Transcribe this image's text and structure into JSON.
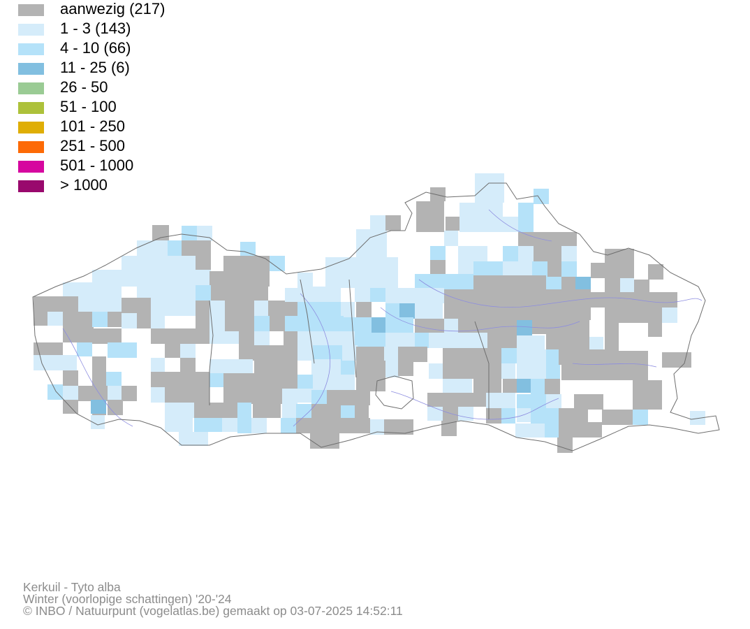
{
  "legend": {
    "items": [
      {
        "label": "aanwezig (217)",
        "color": "#b3b3b3",
        "class": "present"
      },
      {
        "label": "1 - 3 (143)",
        "color": "#d5ecfa",
        "class": "c1"
      },
      {
        "label": "4 - 10 (66)",
        "color": "#b5e2f9",
        "class": "c2"
      },
      {
        "label": "11 - 25 (6)",
        "color": "#82bfe0",
        "class": "c3"
      },
      {
        "label": "26 - 50",
        "color": "#9acb94",
        "class": "c4"
      },
      {
        "label": "51 - 100",
        "color": "#adc13a",
        "class": "c5"
      },
      {
        "label": "101 - 250",
        "color": "#dfae05",
        "class": "c6"
      },
      {
        "label": "251 - 500",
        "color": "#fd6a06",
        "class": "c7"
      },
      {
        "label": "501 - 1000",
        "color": "#d6079f",
        "class": "c8"
      },
      {
        "label": "> 1000",
        "color": "#99096d",
        "class": "c9"
      }
    ]
  },
  "map": {
    "border_color": "#6e6e6e",
    "river_color": "#8c8ce0"
  },
  "footer": {
    "species": "Kerkuil - Tyto alba",
    "period": "Winter (voorlopige schattingen) '20-'24",
    "credit": "© INBO / Natuurpunt (vogelatlas.be) gemaakt op 03-07-2025 14:52:11"
  }
}
